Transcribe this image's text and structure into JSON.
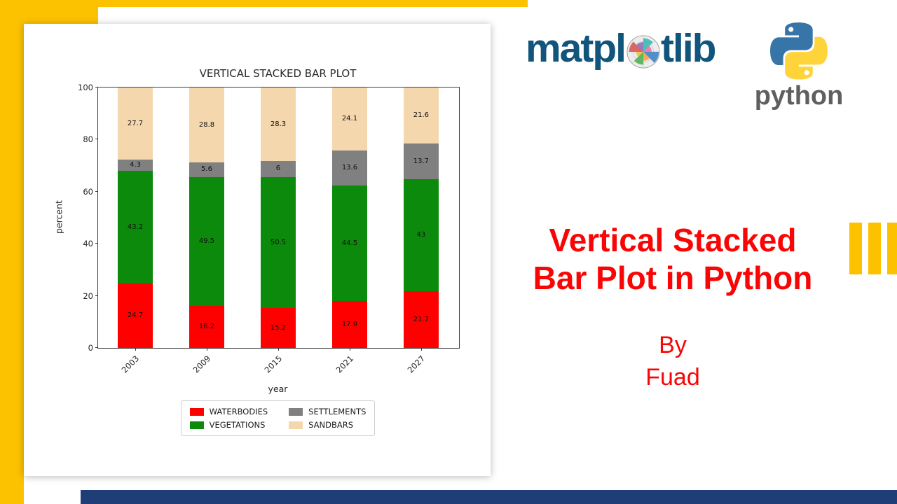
{
  "canvas": {
    "accent_yellow": "#fcc200",
    "footer_blue": "#1f3d77"
  },
  "branding": {
    "matplotlib": {
      "text_before_icon": "matpl",
      "text_after_icon": "tlib",
      "color": "#11557c",
      "icon": "matplotlib-wheel-icon"
    },
    "python": {
      "wordmark": "python",
      "icon": "python-logo-icon",
      "blue": "#3775a9",
      "yellow": "#ffd43b",
      "wordmark_color": "#5f5f5f"
    }
  },
  "headline": {
    "line1": "Vertical Stacked",
    "line2": "Bar Plot in Python",
    "color": "#fa0505"
  },
  "byline": {
    "line1": "By",
    "line2": "Fuad",
    "color": "#fa0505"
  },
  "chart_data": {
    "type": "bar",
    "stacked": true,
    "title": "VERTICAL STACKED BAR PLOT",
    "xlabel": "year",
    "ylabel": "percent",
    "ylim": [
      0,
      100
    ],
    "yticks": [
      0,
      20,
      40,
      60,
      80,
      100
    ],
    "grid": false,
    "categories": [
      "2003",
      "2009",
      "2015",
      "2021",
      "2027"
    ],
    "series": [
      {
        "name": "WATERBODIES",
        "color": "#ff0000",
        "values": [
          24.7,
          16.2,
          15.2,
          17.9,
          21.7
        ]
      },
      {
        "name": "VEGETATIONS",
        "color": "#0b8a0b",
        "values": [
          43.2,
          49.5,
          50.5,
          44.5,
          43
        ]
      },
      {
        "name": "SETTLEMENTS",
        "color": "#808080",
        "values": [
          4.3,
          5.6,
          6,
          13.6,
          13.7
        ]
      },
      {
        "name": "SANDBARS",
        "color": "#f5d7ae",
        "values": [
          27.7,
          28.8,
          28.3,
          24.1,
          21.6
        ]
      }
    ],
    "legend": {
      "columns": 2,
      "order": "column-major",
      "position": "below-axis"
    }
  }
}
